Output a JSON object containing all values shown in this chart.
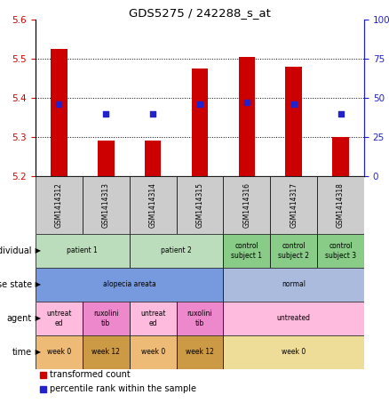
{
  "title": "GDS5275 / 242288_s_at",
  "samples": [
    "GSM1414312",
    "GSM1414313",
    "GSM1414314",
    "GSM1414315",
    "GSM1414316",
    "GSM1414317",
    "GSM1414318"
  ],
  "transformed_count": [
    5.525,
    5.29,
    5.29,
    5.475,
    5.505,
    5.48,
    5.3
  ],
  "percentile_rank": [
    46,
    40,
    40,
    46,
    47,
    46,
    40
  ],
  "ylim_left": [
    5.2,
    5.6
  ],
  "ylim_right": [
    0,
    100
  ],
  "yticks_left": [
    5.2,
    5.3,
    5.4,
    5.5,
    5.6
  ],
  "yticks_right": [
    0,
    25,
    50,
    75,
    100
  ],
  "ytick_labels_right": [
    "0",
    "25",
    "50",
    "75",
    "100%"
  ],
  "bar_color": "#cc0000",
  "dot_color": "#2222cc",
  "bar_bottom": 5.2,
  "annotation_rows": [
    {
      "label": "individual",
      "cells": [
        {
          "text": "patient 1",
          "span": 2,
          "color": "#bbddbb"
        },
        {
          "text": "patient 2",
          "span": 2,
          "color": "#bbddbb"
        },
        {
          "text": "control\nsubject 1",
          "span": 1,
          "color": "#88cc88"
        },
        {
          "text": "control\nsubject 2",
          "span": 1,
          "color": "#88cc88"
        },
        {
          "text": "control\nsubject 3",
          "span": 1,
          "color": "#88cc88"
        }
      ]
    },
    {
      "label": "disease state",
      "cells": [
        {
          "text": "alopecia areata",
          "span": 4,
          "color": "#7799dd"
        },
        {
          "text": "normal",
          "span": 3,
          "color": "#aabbdd"
        }
      ]
    },
    {
      "label": "agent",
      "cells": [
        {
          "text": "untreat\ned",
          "span": 1,
          "color": "#ffbbdd"
        },
        {
          "text": "ruxolini\ntib",
          "span": 1,
          "color": "#ee88cc"
        },
        {
          "text": "untreat\ned",
          "span": 1,
          "color": "#ffbbdd"
        },
        {
          "text": "ruxolini\ntib",
          "span": 1,
          "color": "#ee88cc"
        },
        {
          "text": "untreated",
          "span": 3,
          "color": "#ffbbdd"
        }
      ]
    },
    {
      "label": "time",
      "cells": [
        {
          "text": "week 0",
          "span": 1,
          "color": "#eebb77"
        },
        {
          "text": "week 12",
          "span": 1,
          "color": "#cc9944"
        },
        {
          "text": "week 0",
          "span": 1,
          "color": "#eebb77"
        },
        {
          "text": "week 12",
          "span": 1,
          "color": "#cc9944"
        },
        {
          "text": "week 0",
          "span": 3,
          "color": "#eedd99"
        }
      ]
    }
  ],
  "legend_items": [
    {
      "color": "#cc0000",
      "label": "transformed count"
    },
    {
      "color": "#2222cc",
      "label": "percentile rank within the sample"
    }
  ],
  "axis_color_left": "#cc0000",
  "axis_color_right": "#2222cc",
  "sample_bg_color": "#cccccc",
  "figsize": [
    4.38,
    4.53
  ],
  "dpi": 100
}
